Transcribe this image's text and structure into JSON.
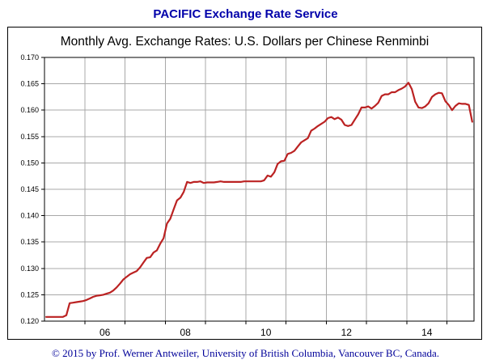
{
  "header": {
    "title": "PACIFIC Exchange Rate Service"
  },
  "footer": {
    "text": "© 2015 by Prof. Werner Antweiler, University of British Columbia, Vancouver BC, Canada."
  },
  "colors": {
    "header_text": "#0000aa",
    "footer_text": "#000099",
    "series_line": "#bb2222",
    "gridline": "#a8a8a8"
  },
  "chart_data": {
    "type": "line",
    "title": "Monthly Avg. Exchange Rates: U.S. Dollars per Chinese Renminbi",
    "series_name": "USD per Chinese Renminbi, monthly average",
    "xlabel": "",
    "ylabel": "",
    "xlim": [
      2005,
      2015.67
    ],
    "ylim": [
      0.12,
      0.17
    ],
    "y_tick_step": 0.005,
    "y_tick_decimals": 3,
    "x_gridlines": [
      2006,
      2007,
      2008,
      2009,
      2010,
      2011,
      2012,
      2013,
      2014,
      2015
    ],
    "x_tick_labels": [
      {
        "x": 2006.5,
        "label": "06"
      },
      {
        "x": 2008.5,
        "label": "08"
      },
      {
        "x": 2010.5,
        "label": "10"
      },
      {
        "x": 2012.5,
        "label": "12"
      },
      {
        "x": 2014.5,
        "label": "14"
      }
    ],
    "x_start_year": 2005,
    "x_step_years": 0.0833333,
    "values": [
      0.1208,
      0.1208,
      0.1208,
      0.1208,
      0.1208,
      0.1208,
      0.1211,
      0.1234,
      0.1235,
      0.1236,
      0.1237,
      0.1238,
      0.124,
      0.1243,
      0.1246,
      0.1248,
      0.1249,
      0.125,
      0.1252,
      0.1254,
      0.1258,
      0.1264,
      0.1271,
      0.1279,
      0.1284,
      0.1289,
      0.1292,
      0.1295,
      0.1302,
      0.1311,
      0.132,
      0.1321,
      0.133,
      0.1334,
      0.1347,
      0.1357,
      0.1385,
      0.1394,
      0.1412,
      0.1429,
      0.1434,
      0.1445,
      0.1464,
      0.1462,
      0.1464,
      0.1464,
      0.1465,
      0.1462,
      0.1463,
      0.1463,
      0.1463,
      0.1464,
      0.1465,
      0.1464,
      0.1464,
      0.1464,
      0.1464,
      0.1464,
      0.1464,
      0.1465,
      0.1465,
      0.1465,
      0.1465,
      0.1465,
      0.1465,
      0.1467,
      0.1476,
      0.1474,
      0.1482,
      0.1498,
      0.1503,
      0.1504,
      0.1517,
      0.1519,
      0.1523,
      0.1531,
      0.1539,
      0.1543,
      0.1547,
      0.1561,
      0.1565,
      0.157,
      0.1574,
      0.1578,
      0.1585,
      0.1587,
      0.1583,
      0.1586,
      0.1582,
      0.1572,
      0.157,
      0.1572,
      0.1582,
      0.1592,
      0.1605,
      0.1605,
      0.1607,
      0.1603,
      0.1608,
      0.1614,
      0.1627,
      0.163,
      0.163,
      0.1634,
      0.1634,
      0.1638,
      0.1641,
      0.1645,
      0.1652,
      0.164,
      0.1616,
      0.1605,
      0.1604,
      0.1607,
      0.1613,
      0.1625,
      0.163,
      0.1633,
      0.1632,
      0.1617,
      0.161,
      0.16,
      0.1608,
      0.1613,
      0.1612,
      0.1612,
      0.161,
      0.1578
    ]
  }
}
